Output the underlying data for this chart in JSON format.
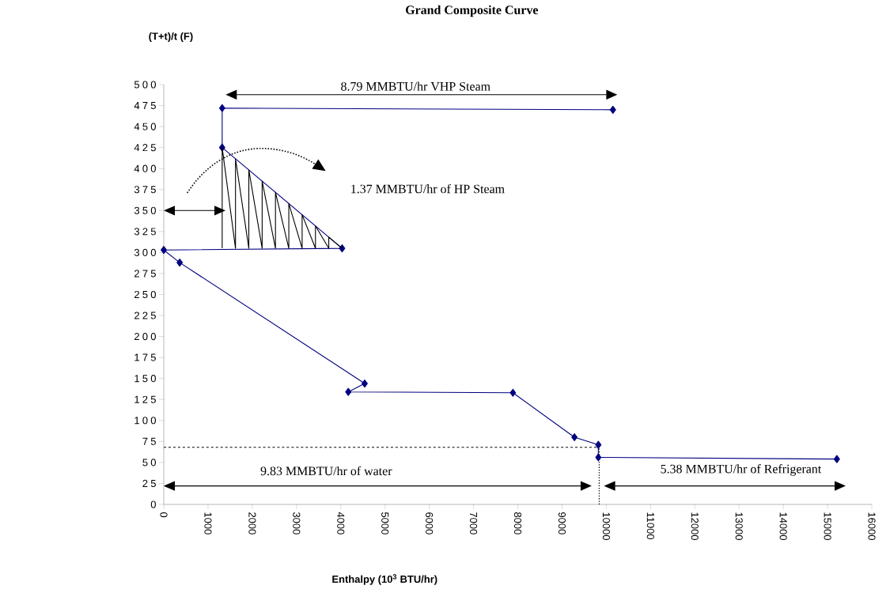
{
  "chart_data": {
    "type": "line",
    "title": "Grand Composite Curve",
    "xlabel": "Enthalpy (10$^{3}$ BTU/hr)",
    "ylabel": "(T+t)/t (F)",
    "x": [
      10150,
      1320,
      1320,
      4030,
      0,
      360,
      4540,
      4170,
      7890,
      9280,
      9820,
      9820,
      15210
    ],
    "series": [
      {
        "color": "#000080",
        "values": [
          470,
          472,
          425,
          305,
          303,
          288,
          144,
          134,
          133,
          80,
          71,
          56,
          54
        ]
      }
    ],
    "marker": "diamond",
    "line_style": "solid",
    "xlim": [
      0,
      16000
    ],
    "ylim": [
      0,
      500
    ],
    "xticks": [
      0,
      1000,
      2000,
      3000,
      4000,
      5000,
      6000,
      7000,
      8000,
      9000,
      10000,
      11000,
      12000,
      13000,
      14000,
      15000,
      16000
    ],
    "yticks": [
      0,
      25,
      50,
      75,
      100,
      125,
      150,
      175,
      200,
      225,
      250,
      275,
      300,
      325,
      350,
      375,
      400,
      425,
      450,
      475,
      500
    ],
    "ref_lines": [
      {
        "axis": "y",
        "value": 68,
        "line_style": "dashed"
      },
      {
        "axis": "x",
        "value": 9840,
        "line_style": "dotted"
      }
    ],
    "annotations": [
      "8.79 MMBTU/hr VHP Steam",
      "1.37 MMBTU/hr of HP Steam",
      "9.83 MMBTU/hr of water",
      "5.38 MMBTU/hr of Refrigerant"
    ]
  }
}
